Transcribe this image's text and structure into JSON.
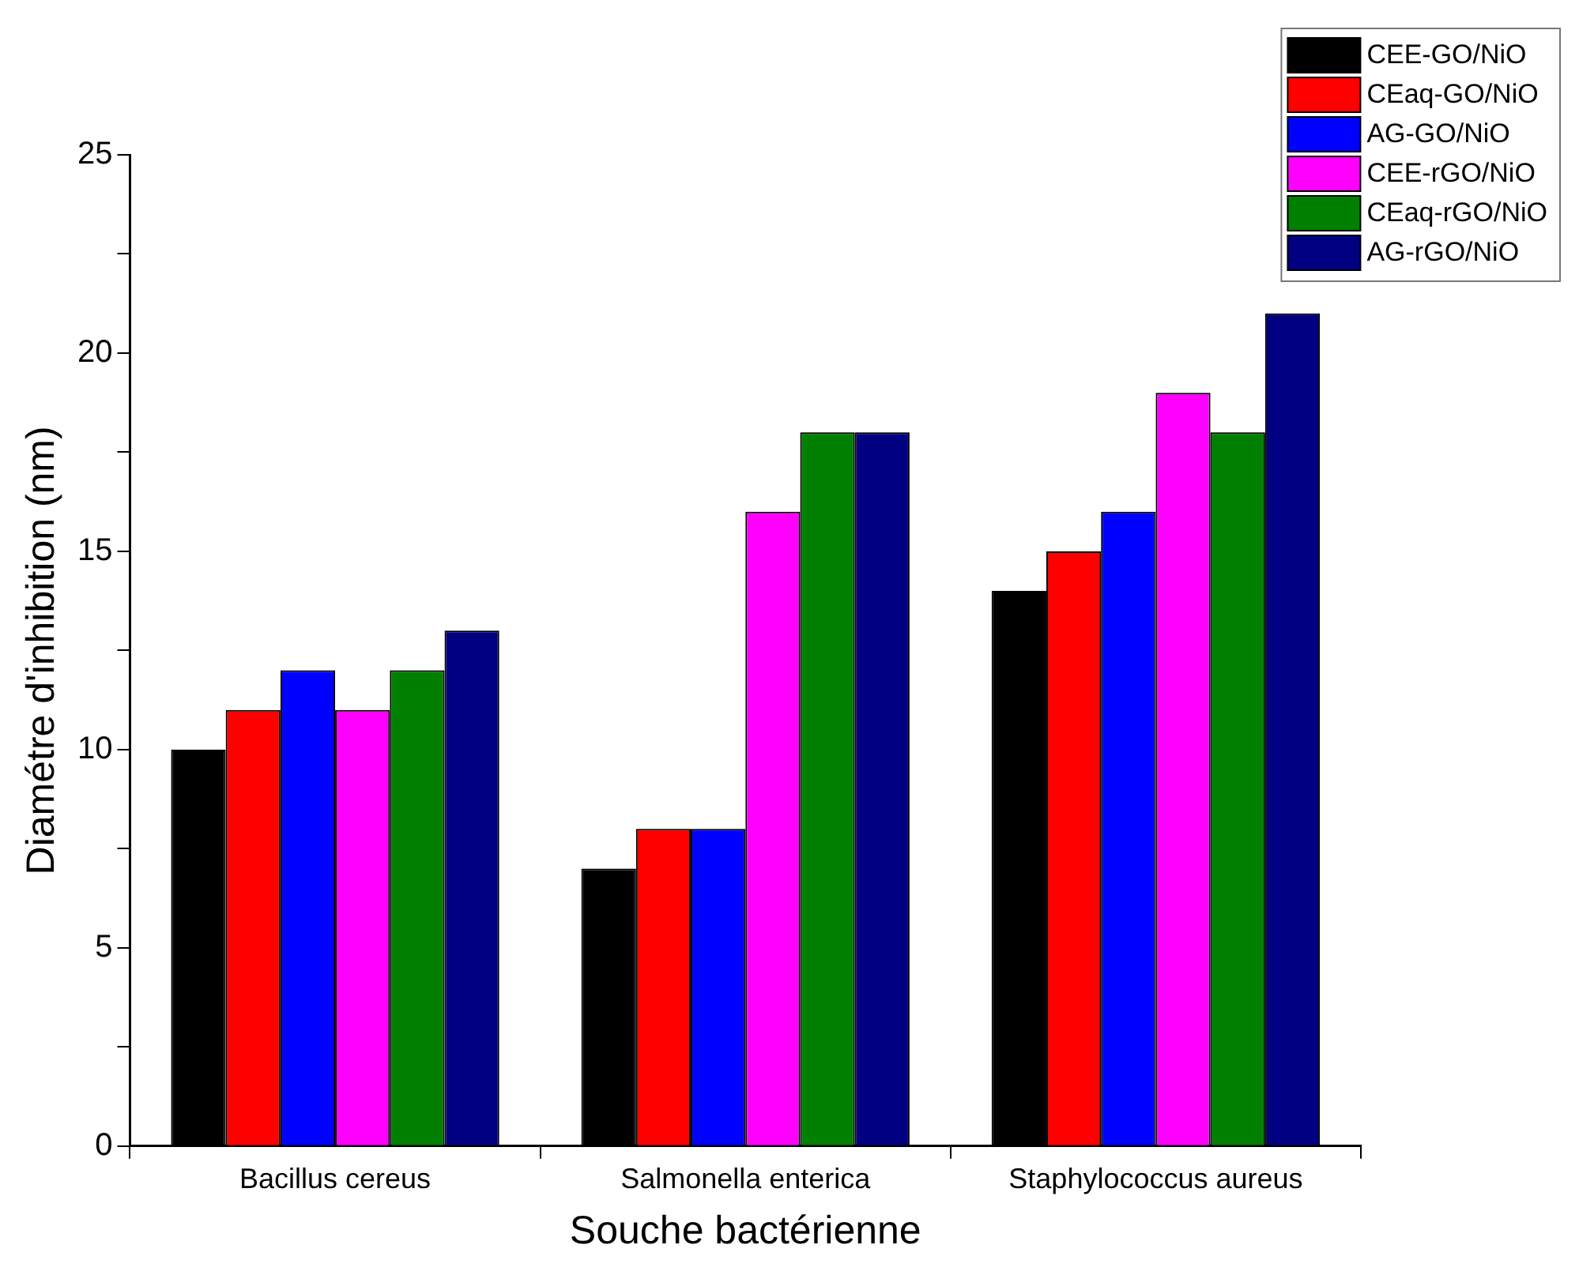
{
  "chart_data": {
    "type": "bar",
    "xlabel": "Souche bactérienne",
    "ylabel": "Diamétre d'inhibition (nm)",
    "categories": [
      "Bacillus cereus",
      "Salmonella enterica",
      "Staphylococcus aureus"
    ],
    "series": [
      {
        "name": "CEE-GO/NiO",
        "color": "#000000",
        "values": [
          10,
          7,
          14
        ]
      },
      {
        "name": "CEaq-GO/NiO",
        "color": "#ff0000",
        "values": [
          11,
          8,
          15
        ]
      },
      {
        "name": "AG-GO/NiO",
        "color": "#0000ff",
        "values": [
          12,
          8,
          16
        ]
      },
      {
        "name": "CEE-rGO/NiO",
        "color": "#ff00ff",
        "values": [
          11,
          16,
          19
        ]
      },
      {
        "name": "CEaq-rGO/NiO",
        "color": "#007f00",
        "values": [
          12,
          18,
          18
        ]
      },
      {
        "name": "AG-rGO/NiO",
        "color": "#000080",
        "values": [
          13,
          18,
          21
        ]
      }
    ],
    "ylim": [
      0,
      25
    ],
    "yticks": [
      0,
      {
        "value": 2.5,
        "label": null
      },
      5,
      {
        "value": 7.5,
        "label": null
      },
      10,
      {
        "value": 12.5,
        "label": null
      },
      15,
      {
        "value": 17.5,
        "label": null
      },
      20,
      {
        "value": 22.5,
        "label": null
      },
      25
    ],
    "grid": false,
    "legend": "top right"
  }
}
